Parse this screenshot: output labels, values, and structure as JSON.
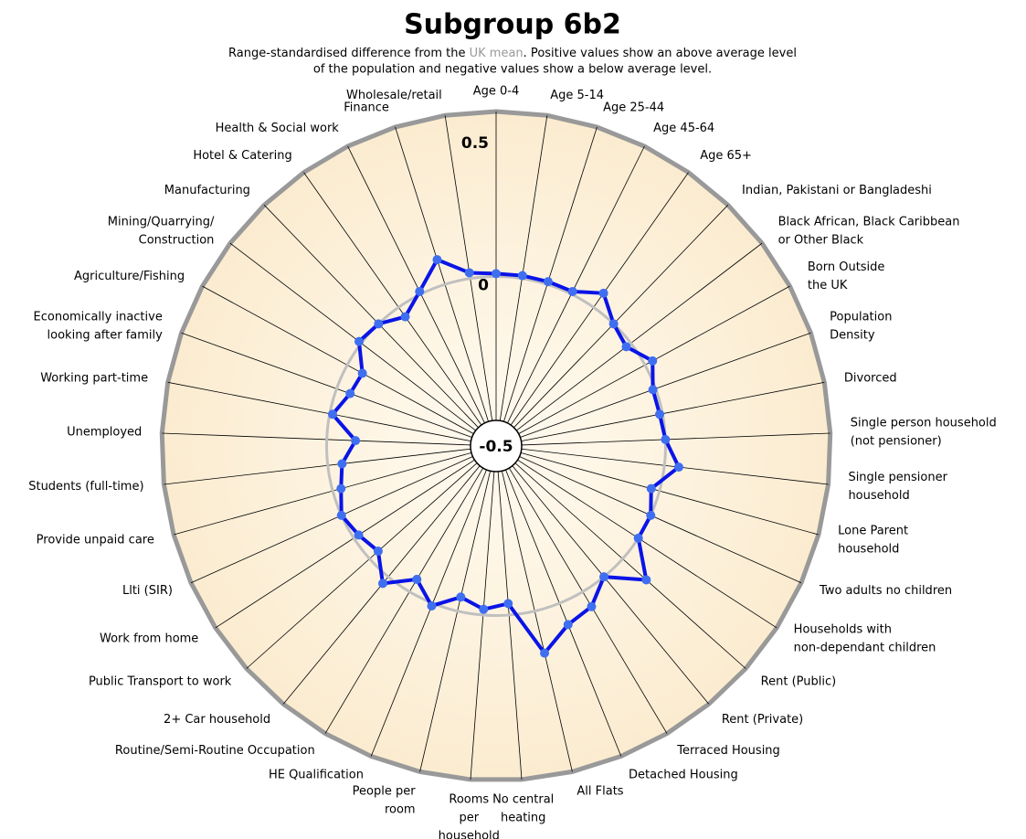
{
  "chart_data": {
    "type": "radar",
    "title": "Subgroup 6b2",
    "subtitle": [
      "Range-standardised difference from the",
      "UK mean",
      ".  Positive values show an above average level",
      "of the population and negative values show a below average level."
    ],
    "categories": [
      [
        "Age 0-4"
      ],
      [
        "Age 5-14"
      ],
      [
        "Age 25-44"
      ],
      [
        "Age 45-64"
      ],
      [
        "Age 65+"
      ],
      [
        "Indian, Pakistani or Bangladeshi"
      ],
      [
        "Black African, Black Caribbean",
        "or Other Black"
      ],
      [
        "Born Outside",
        "the UK"
      ],
      [
        "Population",
        "Density"
      ],
      [
        "Divorced"
      ],
      [
        "Single person household",
        "(not pensioner)"
      ],
      [
        "Single pensioner",
        "household"
      ],
      [
        "Lone Parent",
        "household"
      ],
      [
        "Two adults no children"
      ],
      [
        "Households with",
        "non-dependant children"
      ],
      [
        "Rent (Public)"
      ],
      [
        "Rent (Private)"
      ],
      [
        "Terraced Housing"
      ],
      [
        "Detached Housing"
      ],
      [
        "All Flats"
      ],
      [
        "No central",
        "heating"
      ],
      [
        "Rooms",
        "per",
        "household"
      ],
      [
        "People per",
        "room"
      ],
      [
        "HE Qualification"
      ],
      [
        "Routine/Semi-Routine Occupation"
      ],
      [
        "2+ Car household"
      ],
      [
        "Public Transport to work"
      ],
      [
        "Work from home"
      ],
      [
        "Llti (SIR)"
      ],
      [
        "Provide unpaid care"
      ],
      [
        "Students (full-time)"
      ],
      [
        "Unemployed"
      ],
      [
        "Working part-time"
      ],
      [
        "Economically inactive",
        "looking after family"
      ],
      [
        "Agriculture/Fishing"
      ],
      [
        "Mining/Quarrying/",
        "Construction"
      ],
      [
        "Manufacturing"
      ],
      [
        "Hotel & Catering"
      ],
      [
        "Health & Social work"
      ],
      [
        "Finance"
      ],
      [
        "Wholesale/retail"
      ]
    ],
    "series": [
      {
        "name": "Subgroup 6b2",
        "color": "#0a14e6",
        "marker_color": "#3f6ff0",
        "values": [
          0.01,
          0.01,
          0.01,
          0.01,
          0.06,
          0.0,
          -0.02,
          0.03,
          -0.01,
          -0.01,
          0.0,
          0.05,
          -0.03,
          0.0,
          0.0,
          0.11,
          0.0,
          0.06,
          0.08,
          0.15,
          -0.04,
          -0.02,
          -0.05,
          0.01,
          -0.05,
          0.03,
          -0.04,
          -0.02,
          0.0,
          -0.03,
          -0.05,
          -0.1,
          -0.01,
          -0.05,
          -0.06,
          0.01,
          0.0,
          -0.04,
          0.01,
          0.09,
          0.02
        ]
      }
    ],
    "rlim": [
      -0.5,
      0.5
    ],
    "rticks": [
      -0.5,
      0,
      0.5
    ]
  }
}
